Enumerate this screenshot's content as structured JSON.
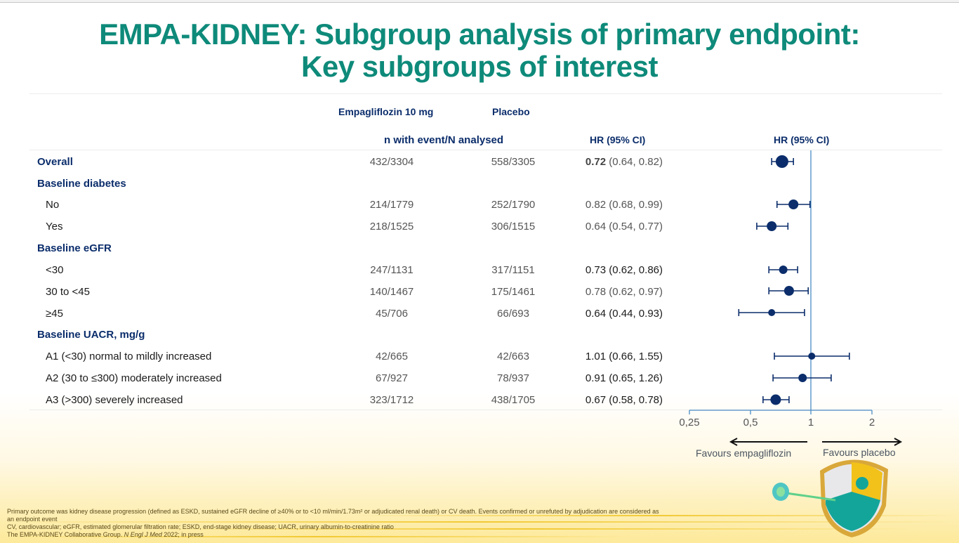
{
  "title": {
    "line1": "EMPA-KIDNEY: Subgroup analysis of primary endpoint:",
    "line2": "Key subgroups of interest"
  },
  "table_headers": {
    "empa": "Empagliflozin 10 mg",
    "placebo": "Placebo",
    "n_events": "n with event/N analysed",
    "hr_col": "HR (95% CI)",
    "hr_plot": "HR (95% CI)"
  },
  "rows": [
    {
      "label": "Overall",
      "group": true,
      "empa": "432/3304",
      "placebo": "558/3305",
      "hr_value": "0.72",
      "hr_ci": " (0.64, 0.82)"
    },
    {
      "label": "Baseline diabetes",
      "group": true
    },
    {
      "label": "No",
      "empa": "214/1779",
      "placebo": "252/1790",
      "hr_text": "0.82 (0.68, 0.99)"
    },
    {
      "label": "Yes",
      "empa": "218/1525",
      "placebo": "306/1515",
      "hr_text": "0.64 (0.54, 0.77)"
    },
    {
      "label": "Baseline eGFR",
      "group": true
    },
    {
      "label": "<30",
      "empa": "247/1131",
      "placebo": "317/1151",
      "hr_text": "0.73 (0.62, 0.86)"
    },
    {
      "label": "30 to <45",
      "empa": "140/1467",
      "placebo": "175/1461",
      "hr_text": "0.78 (0.62, 0.97)"
    },
    {
      "label": "≥45",
      "empa": "45/706",
      "placebo": "66/693",
      "hr_text": "0.64 (0.44, 0.93)"
    },
    {
      "label": "Baseline UACR, mg/g",
      "group": true
    },
    {
      "label": "A1 (<30) normal to mildly increased",
      "empa": "42/665",
      "placebo": "42/663",
      "hr_text": "1.01 (0.66, 1.55)"
    },
    {
      "label": "A2 (30 to ≤300) moderately increased",
      "empa": "67/927",
      "placebo": "78/937",
      "hr_text": "0.91 (0.65, 1.26)"
    },
    {
      "label": "A3 (>300) severely increased",
      "empa": "323/1712",
      "placebo": "438/1705",
      "hr_text": "0.67 (0.58, 0.78)"
    }
  ],
  "axis": {
    "ticks": [
      "0,25",
      "0,5",
      "1",
      "2"
    ],
    "favours_left": "Favours empagliflozin",
    "favours_right": "Favours placebo"
  },
  "footnotes": {
    "line1": "Primary outcome was kidney disease progression (defined as ESKD, sustained eGFR decline of ≥40% or to <10 ml/min/1.73m² or adjudicated renal death) or CV death. Events confirmed or unrefuted by adjudication are considered as",
    "line2": "an endpoint event",
    "line3": "CV, cardiovascular; eGFR, estimated glomerular filtration rate; ESKD, end-stage kidney disease; UACR, urinary albumin-to-creatinine ratio",
    "line4_pre": "The EMPA-KIDNEY Collaborative Group. ",
    "line4_journal": "N Engl J Med",
    "line4_post": " 2022; in press"
  },
  "colors": {
    "title": "#0e8a7a",
    "header": "#0b2d6b",
    "marker": "#0b2d6b",
    "ref_line": "#4a8cc4"
  },
  "chart_data": {
    "type": "forest",
    "title": "EMPA-KIDNEY: Subgroup analysis of primary endpoint: Key subgroups of interest",
    "xlabel": "HR (95% CI)",
    "x_scale": "log",
    "xlim": [
      0.25,
      2.6
    ],
    "x_ticks": [
      0.25,
      0.5,
      1,
      2
    ],
    "reference_line": 1,
    "annotations": [
      "Favours empagliflozin",
      "Favours placebo"
    ],
    "categories": [
      "Overall",
      "Baseline diabetes: No",
      "Baseline diabetes: Yes",
      "eGFR <30",
      "eGFR 30 to <45",
      "eGFR ≥45",
      "UACR A1 (<30)",
      "UACR A2 (30 to ≤300)",
      "UACR A3 (>300)"
    ],
    "series": [
      {
        "name": "HR",
        "values": [
          0.72,
          0.82,
          0.64,
          0.73,
          0.78,
          0.64,
          1.01,
          0.91,
          0.67
        ]
      },
      {
        "name": "CI lower",
        "values": [
          0.64,
          0.68,
          0.54,
          0.62,
          0.62,
          0.44,
          0.66,
          0.65,
          0.58
        ]
      },
      {
        "name": "CI upper",
        "values": [
          0.82,
          0.99,
          0.77,
          0.86,
          0.97,
          0.93,
          1.55,
          1.26,
          0.78
        ]
      }
    ],
    "empagliflozin_events": [
      "432/3304",
      "214/1779",
      "218/1525",
      "247/1131",
      "140/1467",
      "45/706",
      "42/665",
      "67/927",
      "323/1712"
    ],
    "placebo_events": [
      "558/3305",
      "252/1790",
      "306/1515",
      "317/1151",
      "175/1461",
      "66/693",
      "42/663",
      "78/937",
      "438/1705"
    ]
  }
}
